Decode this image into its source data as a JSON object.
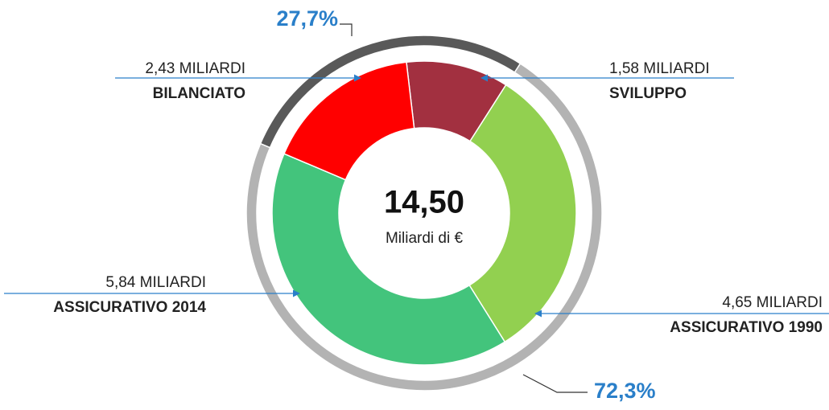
{
  "chart_data": {
    "type": "donut",
    "categories": [
      "SVILUPPO",
      "ASSICURATIVO 1990",
      "ASSICURATIVO 2014",
      "BILANCIATO"
    ],
    "values": [
      1.58,
      4.65,
      5.84,
      2.43
    ],
    "value_labels": [
      "1,58 MILIARDI",
      "4,65 MILIARDI",
      "5,84 MILIARDI",
      "2,43 MILIARDI"
    ],
    "colors": [
      "#a23040",
      "#92d050",
      "#43c47c",
      "#ff0000"
    ],
    "center_text": "14,50",
    "center_subtext": "Miliardi di €",
    "ring": {
      "values": [
        27.7,
        72.3
      ],
      "value_labels": [
        "27,7%",
        "72,3%"
      ],
      "colors": [
        "#595959",
        "#b3b3b3"
      ]
    }
  }
}
